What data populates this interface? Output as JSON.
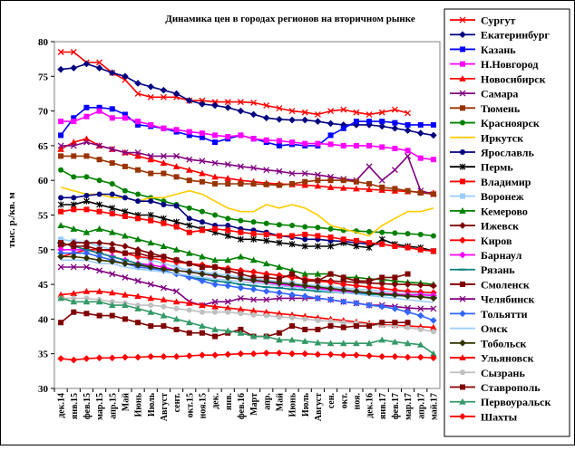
{
  "chart_data": {
    "type": "line",
    "title": "Динамика цен в городах регионов на вторичном рынке",
    "ylabel": "тыс. р./кв. м",
    "ylim": [
      30,
      80
    ],
    "yticks": [
      30,
      35,
      40,
      45,
      50,
      55,
      60,
      65,
      70,
      75,
      80
    ],
    "grid": false,
    "legend_position": "right",
    "categories": [
      "дек.14",
      "янв.15",
      "фев.15",
      "мар.15",
      "апр.15",
      "Май",
      "Июнь",
      "Июль",
      "Август",
      "сент.",
      "окт.15",
      "ноя.15",
      "дек.",
      "янв.",
      "фев.16",
      "Март",
      "апр.",
      "Май",
      "Июнь",
      "Июль",
      "Август",
      "сен.",
      "окт.",
      "ноя.",
      "дек.16",
      "янв.17",
      "фев.17",
      "мар.17",
      "апр.17",
      "май.17"
    ],
    "series": [
      {
        "name": "Сургут",
        "color": "#ff0000",
        "marker": "x",
        "values": [
          78.5,
          78.5,
          77,
          77,
          75.5,
          74.5,
          72.5,
          72,
          72,
          72,
          71.5,
          71.5,
          71.3,
          71.3,
          71.3,
          71.2,
          70.8,
          70.4,
          70.0,
          69.8,
          69.5,
          70.0,
          70.2,
          69.8,
          69.5,
          69.8,
          70.2,
          69.7,
          null,
          null
        ]
      },
      {
        "name": "Екатеринбург",
        "color": "#000080",
        "marker": "diamond",
        "values": [
          76,
          76.2,
          76.8,
          76.2,
          75.5,
          75,
          74,
          73.5,
          73,
          72.5,
          71.5,
          71,
          70.8,
          70.5,
          70,
          69.5,
          69,
          68.8,
          68.7,
          68.7,
          68.5,
          68.2,
          68.0,
          68.0,
          68.0,
          67.8,
          67.5,
          67.2,
          66.8,
          66.5
        ]
      },
      {
        "name": "Казань",
        "color": "#0000ff",
        "marker": "square",
        "values": [
          66.5,
          69,
          70.5,
          70.5,
          70.3,
          69.5,
          68,
          67.8,
          67.5,
          67,
          66.5,
          66.2,
          65.5,
          66,
          66.5,
          66,
          65.5,
          65,
          65.2,
          65,
          65,
          66.5,
          67.5,
          68.5,
          68.5,
          68.5,
          68.3,
          68,
          68,
          68
        ]
      },
      {
        "name": "Н.Новгород",
        "color": "#ff00ff",
        "marker": "square",
        "values": [
          68.5,
          68.5,
          69.2,
          70,
          69,
          69,
          68.5,
          68,
          67.5,
          67.3,
          67,
          66.8,
          66.5,
          66.3,
          66.5,
          66,
          65.8,
          65.7,
          65.5,
          65.3,
          65.3,
          65.2,
          65,
          65,
          65,
          64.8,
          64.6,
          64.3,
          63.2,
          63
        ]
      },
      {
        "name": "Новосибирск",
        "color": "#ff0000",
        "marker": "triangle",
        "values": [
          64.5,
          65.5,
          66,
          65,
          64.5,
          64,
          63.5,
          63,
          62.5,
          62,
          61.5,
          61,
          60.5,
          60.3,
          60,
          59.8,
          59.6,
          59.5,
          59.4,
          59.3,
          59.2,
          59,
          58.9,
          58.8,
          58.7,
          58.6,
          58.5,
          58.4,
          58.3,
          58.2
        ]
      },
      {
        "name": "Самара",
        "color": "#800080",
        "marker": "x",
        "values": [
          65,
          65,
          65.5,
          65,
          64.5,
          64,
          64,
          63.5,
          63.5,
          63.5,
          63,
          62.8,
          62.5,
          62.3,
          62,
          61.8,
          61.5,
          61.3,
          61,
          61,
          60.8,
          60.5,
          60.2,
          60,
          62,
          60,
          61.5,
          63.5,
          58.5,
          58
        ]
      },
      {
        "name": "Тюмень",
        "color": "#993300",
        "marker": "square",
        "values": [
          63.5,
          63.5,
          63.5,
          63,
          62.5,
          62,
          61.5,
          61,
          61,
          60.5,
          60,
          59.8,
          59.5,
          59.5,
          59.5,
          59.5,
          59.4,
          59.3,
          59.5,
          59.8,
          60,
          60,
          60,
          59.8,
          59.5,
          59,
          58.8,
          58.5,
          58.2,
          58
        ]
      },
      {
        "name": "Красноярск",
        "color": "#008000",
        "marker": "circle",
        "values": [
          61.5,
          60.5,
          60.5,
          60,
          59.5,
          58.5,
          58,
          57.5,
          57,
          56.5,
          56,
          55.5,
          55,
          54.5,
          54.2,
          54,
          53.8,
          53.6,
          53.5,
          53.3,
          53.2,
          53,
          52.8,
          52.7,
          52.6,
          52.5,
          52.4,
          52.3,
          52.2,
          52
        ]
      },
      {
        "name": "Иркутск",
        "color": "#ffcc00",
        "marker": "none",
        "values": [
          59,
          58.5,
          58,
          58,
          57.5,
          57.5,
          57,
          57.5,
          57.5,
          58,
          58.5,
          58,
          57,
          56,
          55.5,
          55.5,
          56.5,
          56,
          56.5,
          56,
          55,
          53.5,
          53,
          52.5,
          52,
          53.5,
          54.5,
          55.5,
          55.5,
          56
        ]
      },
      {
        "name": "Ярославль",
        "color": "#000080",
        "marker": "circle",
        "values": [
          57.5,
          57.5,
          57.8,
          58,
          58,
          57.5,
          57,
          57,
          56.5,
          56.3,
          54.5,
          54,
          53.5,
          53.5,
          53,
          52.8,
          52.5,
          52,
          51.8,
          51.5,
          51.5,
          51.3,
          51.2,
          51,
          50.8,
          50.8,
          50.5,
          50.3,
          50,
          49.8
        ]
      },
      {
        "name": "Пермь",
        "color": "#000000",
        "marker": "star",
        "values": [
          56.5,
          56.5,
          57,
          56.5,
          56,
          55.5,
          55,
          55,
          54.5,
          54,
          53.5,
          53,
          52.5,
          52,
          51.5,
          51.5,
          51.3,
          51,
          50.8,
          50.5,
          50.5,
          50.5,
          51,
          50.5,
          50.3,
          51.5,
          50.8,
          50.5,
          50.3,
          49.8
        ]
      },
      {
        "name": "Владимир",
        "color": "#ff0000",
        "marker": "square",
        "values": [
          55.5,
          55.8,
          55.8,
          55.5,
          55.2,
          54.8,
          54.5,
          54.2,
          53.8,
          53.3,
          52.5,
          52.8,
          53,
          52.8,
          52.5,
          52.3,
          52.2,
          52,
          52,
          52.2,
          52,
          51.8,
          51.5,
          51.3,
          51,
          50.8,
          50.5,
          50.3,
          50,
          49.8
        ]
      },
      {
        "name": "Воронеж",
        "color": "#99ccff",
        "marker": "square",
        "values": [
          51.5,
          51.2,
          51,
          50.5,
          50,
          49.5,
          49,
          48.5,
          48,
          47.5,
          47,
          46.8,
          46.5,
          46.3,
          46,
          45.8,
          45.6,
          45.4,
          45.2,
          45,
          44.8,
          44.6,
          44.5,
          44.3,
          44.2,
          44,
          44,
          43.8,
          43.7,
          43.5
        ]
      },
      {
        "name": "Кемерово",
        "color": "#008000",
        "marker": "triangle",
        "values": [
          53.5,
          53,
          52.5,
          53,
          52.5,
          52,
          51.5,
          51,
          50.5,
          50,
          49.5,
          49,
          48.5,
          48.5,
          49,
          48.5,
          48,
          47.5,
          47,
          46.5,
          46.5,
          46.5,
          46,
          46,
          45.8,
          45.7,
          45.5,
          45.3,
          45.2,
          45
        ]
      },
      {
        "name": "Ижевск",
        "color": "#800000",
        "marker": "diamond",
        "values": [
          50.5,
          51,
          51,
          51,
          50.8,
          50.5,
          50,
          49.5,
          49,
          48.5,
          48,
          47.8,
          47.5,
          47.3,
          47,
          46.8,
          46.5,
          46.3,
          46,
          45.8,
          45.6,
          45.5,
          45.4,
          45.3,
          45.2,
          45.1,
          45,
          45,
          44.9,
          44.8
        ]
      },
      {
        "name": "Киров",
        "color": "#ff0000",
        "marker": "diamond",
        "values": [
          49,
          49.5,
          50,
          50,
          49.8,
          49.5,
          49,
          48.8,
          48.5,
          48.2,
          48,
          47.8,
          47.5,
          47.3,
          47,
          46.8,
          46.5,
          46.3,
          46,
          45.8,
          45.5,
          45.3,
          45,
          44.8,
          44.6,
          44.4,
          44.2,
          44,
          43.9,
          43.8
        ]
      },
      {
        "name": "Барнаул",
        "color": "#ff00ff",
        "marker": "diamond",
        "values": [
          50,
          50,
          50,
          49.5,
          49,
          48.5,
          48,
          47.8,
          47.5,
          47,
          46.8,
          46.5,
          46.2,
          46,
          45.8,
          45.5,
          45.3,
          45,
          44.8,
          44.6,
          44.4,
          44.2,
          44,
          43.9,
          43.8,
          43.7,
          43.6,
          43.5,
          43.5,
          43.4
        ]
      },
      {
        "name": "Рязань",
        "color": "#008080",
        "marker": "dash",
        "values": [
          51,
          50.5,
          50,
          49.5,
          49,
          48.5,
          48,
          47.5,
          47,
          46.5,
          46,
          45.8,
          45.5,
          45.3,
          45,
          44.8,
          44.6,
          44.5,
          44.3,
          44.2,
          44,
          43.9,
          43.8,
          43.7,
          43.6,
          43.5,
          43.4,
          43.3,
          43.2,
          43.1
        ]
      },
      {
        "name": "Смоленск",
        "color": "#800000",
        "marker": "square",
        "values": [
          51,
          50.5,
          50.5,
          50,
          50,
          49.5,
          49.5,
          49,
          49,
          48.5,
          48,
          47.5,
          47.5,
          47,
          46.5,
          46,
          46,
          45.8,
          46.5,
          45.5,
          45.5,
          46.5,
          46,
          45.5,
          45.5,
          46,
          46,
          46.5,
          null,
          null
        ]
      },
      {
        "name": "Челябинск",
        "color": "#800080",
        "marker": "x",
        "values": [
          47.5,
          47.5,
          47.5,
          47,
          46.5,
          46,
          45.5,
          45,
          44.5,
          44,
          42.5,
          42,
          42.5,
          42.5,
          43,
          42.8,
          42.8,
          43,
          43,
          43,
          43,
          42.8,
          42.5,
          42.3,
          42,
          42,
          41.8,
          41.6,
          41.5,
          41.5
        ]
      },
      {
        "name": "Тольятти",
        "color": "#3366ff",
        "marker": "diamond",
        "values": [
          49.5,
          49.5,
          49.5,
          49,
          48.5,
          48,
          47.5,
          47.3,
          47,
          46.5,
          46,
          45.5,
          45,
          44.8,
          44.5,
          44.3,
          44,
          43.8,
          43.5,
          43.3,
          43,
          42.8,
          42.5,
          42.3,
          42,
          41.8,
          41.5,
          41,
          40.5,
          39.8
        ]
      },
      {
        "name": "Омск",
        "color": "#99ccff",
        "marker": "none",
        "values": [
          48.5,
          48.5,
          48.5,
          48,
          48,
          47.5,
          47.2,
          47,
          46.8,
          46.5,
          46.3,
          46,
          45.8,
          45.6,
          45.4,
          45.2,
          45,
          44.8,
          44.6,
          44.4,
          44.2,
          44,
          43.8,
          43.6,
          43.4,
          43.2,
          43,
          42.8,
          42.6,
          42.4
        ]
      },
      {
        "name": "Тобольск",
        "color": "#333300",
        "marker": "diamond",
        "values": [
          49,
          49,
          48.8,
          48.5,
          48.3,
          48,
          47.8,
          47.5,
          47.2,
          47,
          46.8,
          46.5,
          46.3,
          46,
          45.8,
          45.6,
          45.4,
          45.2,
          45,
          44.8,
          44.6,
          44.4,
          44.2,
          44,
          43.8,
          43.6,
          43.5,
          43.3,
          43.2,
          43
        ]
      },
      {
        "name": "Ульяновск",
        "color": "#ff0000",
        "marker": "triangle",
        "values": [
          43.5,
          43.7,
          44,
          44,
          43.8,
          43.5,
          43.3,
          43,
          42.8,
          42.5,
          42.3,
          42,
          41.8,
          41.6,
          41.4,
          41.2,
          41,
          40.8,
          40.6,
          40.4,
          40.2,
          40,
          39.8,
          39.6,
          39.4,
          39.2,
          39.1,
          39,
          38.9,
          38.8
        ]
      },
      {
        "name": "Сызрань",
        "color": "#c0c0c0",
        "marker": "circle",
        "values": [
          43,
          43,
          43,
          42.8,
          42.5,
          42.3,
          42,
          42,
          41.8,
          41.5,
          41.3,
          41,
          41,
          41,
          40.8,
          40.6,
          40.5,
          40.3,
          40.2,
          40,
          39.8,
          39.7,
          39.5,
          39.4,
          39.2,
          39.1,
          39,
          38.8,
          38.5,
          38.2
        ]
      },
      {
        "name": "Ставрополь",
        "color": "#800000",
        "marker": "square",
        "values": [
          39.5,
          41,
          40.8,
          40.5,
          40.5,
          40,
          39.5,
          39,
          39,
          38.5,
          38,
          38,
          37.5,
          38,
          38.5,
          37.5,
          37.5,
          38,
          39,
          38.5,
          38.5,
          39,
          38.8,
          39,
          39,
          39.5,
          39.5,
          39.5,
          null,
          null
        ]
      },
      {
        "name": "Первоуральск",
        "color": "#339966",
        "marker": "triangle",
        "values": [
          43,
          42.5,
          42.5,
          42.5,
          42,
          42,
          41.5,
          41,
          40.5,
          40,
          39.5,
          39,
          38.5,
          38.3,
          38,
          37.5,
          37.5,
          37,
          37,
          36.8,
          36.6,
          36.5,
          36.5,
          36.5,
          36.5,
          37,
          36.7,
          36.5,
          36.3,
          35
        ]
      },
      {
        "name": "Шахты",
        "color": "#ff0000",
        "marker": "diamond",
        "values": [
          34.3,
          34.1,
          34.3,
          34.4,
          34.4,
          34.5,
          34.5,
          34.6,
          34.6,
          34.6,
          34.7,
          34.8,
          34.8,
          34.9,
          35.0,
          35.0,
          35.1,
          35.1,
          35.0,
          35.0,
          34.9,
          34.9,
          34.8,
          34.8,
          34.7,
          34.6,
          34.6,
          34.5,
          34.5,
          34.4
        ]
      }
    ]
  }
}
